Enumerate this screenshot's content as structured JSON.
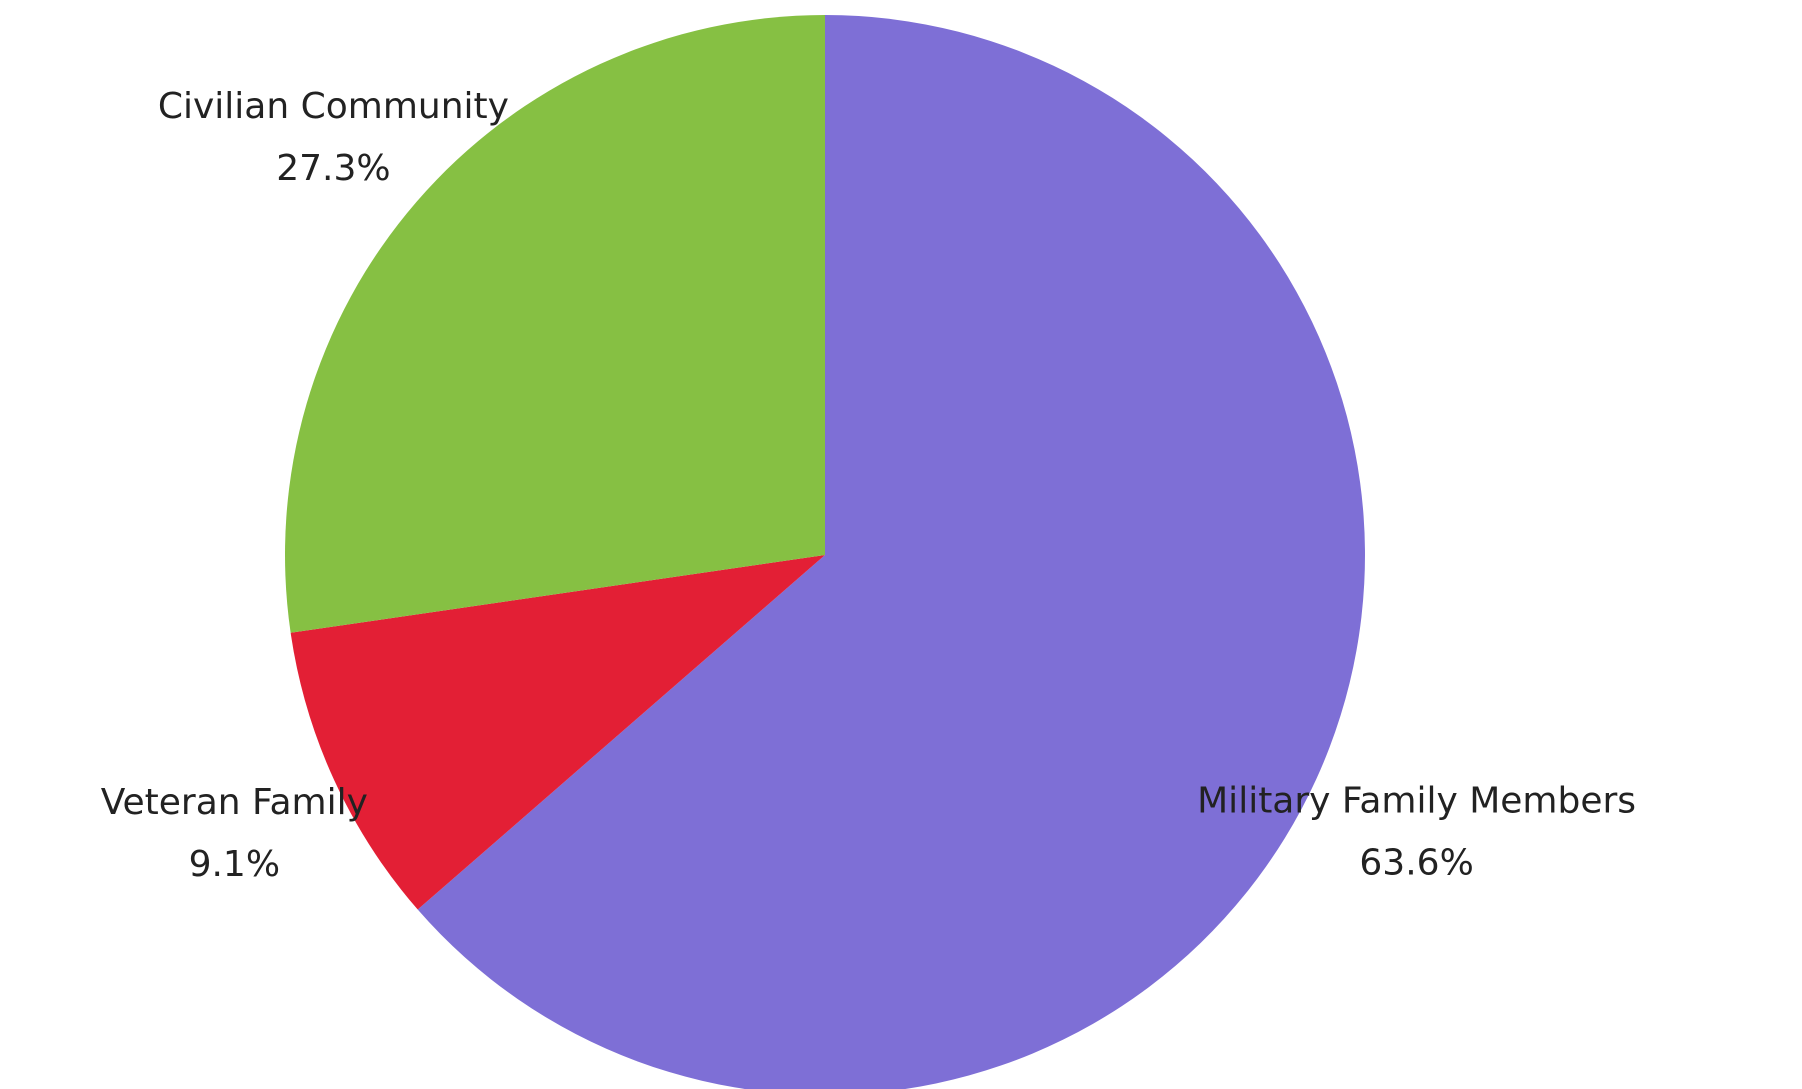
{
  "chart_data": {
    "type": "pie",
    "title": "",
    "slices": [
      {
        "label": "Military Family Members",
        "value": 63.6,
        "value_label": "63.6%",
        "color": "#7e6fd6"
      },
      {
        "label": "Veteran Family",
        "value": 9.1,
        "value_label": "9.1%",
        "color": "#e31f35"
      },
      {
        "label": "Civilian Community",
        "value": 27.3,
        "value_label": "27.3%",
        "color": "#86c043"
      }
    ],
    "start_angle": "12 o'clock",
    "direction": "clockwise",
    "legend": "none",
    "labels": "outside"
  }
}
